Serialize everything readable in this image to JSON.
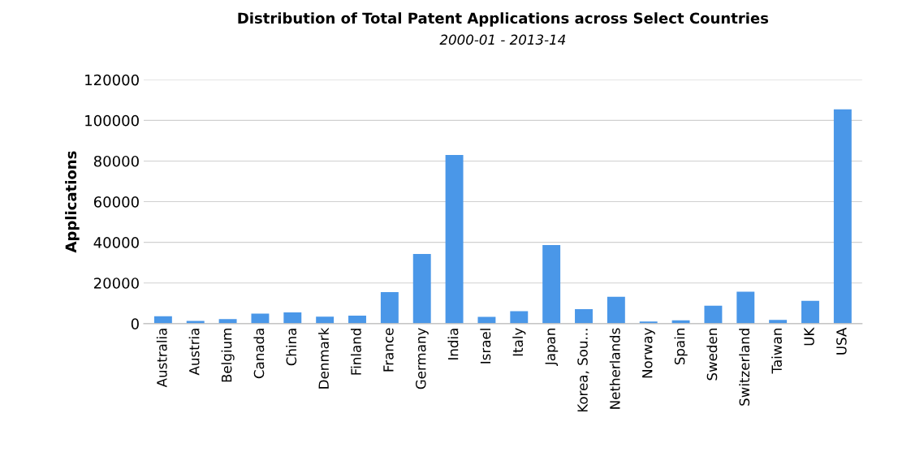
{
  "chart_data": {
    "type": "bar",
    "title": "Distribution of Total Patent Applications across Select Countries",
    "subtitle": "2000-01 - 2013-14",
    "ylabel": "Applications",
    "categories": [
      "Australia",
      "Austria",
      "Belgium",
      "Canada",
      "China",
      "Denmark",
      "Finland",
      "France",
      "Germany",
      "India",
      "Israel",
      "Italy",
      "Japan",
      "Korea, Sou...",
      "Netherlands",
      "Norway",
      "Spain",
      "Sweden",
      "Switzerland",
      "Taiwan",
      "UK",
      "USA"
    ],
    "values": [
      3600,
      1300,
      2200,
      4900,
      5500,
      3400,
      3900,
      15500,
      34300,
      83000,
      3300,
      6100,
      38700,
      7100,
      13200,
      1000,
      1600,
      8800,
      15700,
      1800,
      11200,
      105400
    ],
    "color": "#4a97e8",
    "ylim": [
      0,
      120000
    ],
    "yticks": [
      0,
      20000,
      40000,
      60000,
      80000,
      100000,
      120000
    ],
    "grid": "y"
  }
}
